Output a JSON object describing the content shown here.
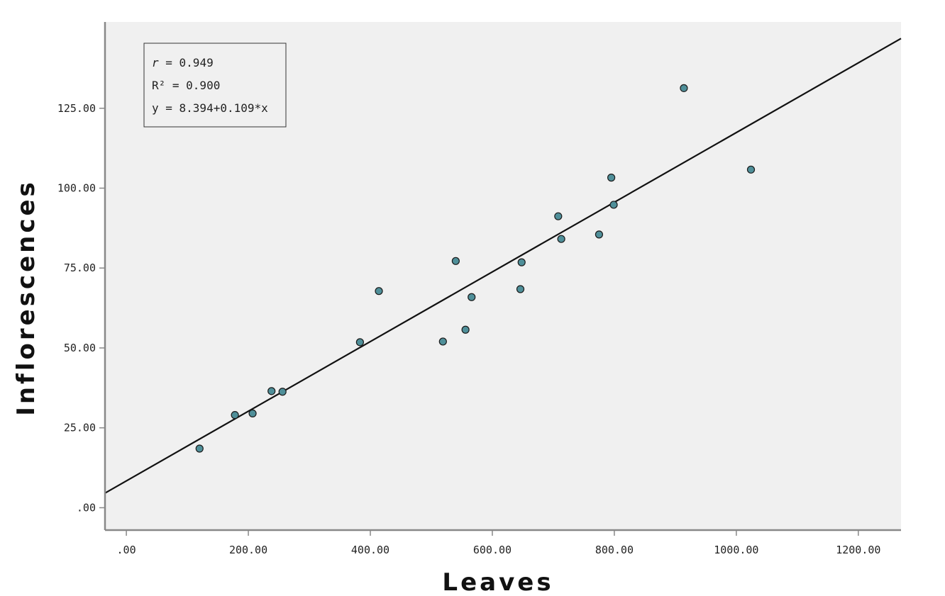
{
  "chart_data": {
    "type": "scatter",
    "title": "",
    "xlabel": "Leaves",
    "ylabel": "Inflorescences",
    "xlim": [
      -35,
      1270
    ],
    "ylim": [
      -7,
      152
    ],
    "x_ticks": [
      0,
      200,
      400,
      600,
      800,
      1000,
      1200
    ],
    "x_tick_labels": [
      ".00",
      "200.00",
      "400.00",
      "600.00",
      "800.00",
      "1000.00",
      "1200.00"
    ],
    "y_ticks": [
      0,
      25,
      50,
      75,
      100,
      125
    ],
    "y_tick_labels": [
      ".00",
      "25.00",
      "50.00",
      "75.00",
      "100.00",
      "125.00"
    ],
    "grid": false,
    "plot_background": "#f0f0f0",
    "point_color": "#4f8f99",
    "point_edge_color": "#1a1a1a",
    "line_color": "#111111",
    "axis_color": "#888888",
    "fit_line": {
      "intercept": 8.394,
      "slope": 0.109
    },
    "stats": {
      "r_label": "r",
      "r_value": " = 0.949",
      "r2": "R² = 0.900",
      "equation": "y = 8.394+0.109*x"
    },
    "points": [
      {
        "x": 120,
        "y": 18.5
      },
      {
        "x": 178,
        "y": 29
      },
      {
        "x": 207,
        "y": 29.5
      },
      {
        "x": 238,
        "y": 36.5
      },
      {
        "x": 256,
        "y": 36.3
      },
      {
        "x": 383,
        "y": 51.8
      },
      {
        "x": 414,
        "y": 67.8
      },
      {
        "x": 519,
        "y": 52
      },
      {
        "x": 540,
        "y": 77.2
      },
      {
        "x": 556,
        "y": 55.7
      },
      {
        "x": 566,
        "y": 65.9
      },
      {
        "x": 646,
        "y": 68.4
      },
      {
        "x": 648,
        "y": 76.8
      },
      {
        "x": 708,
        "y": 91.2
      },
      {
        "x": 713,
        "y": 84.1
      },
      {
        "x": 775,
        "y": 85.5
      },
      {
        "x": 795,
        "y": 103.3
      },
      {
        "x": 799,
        "y": 94.8
      },
      {
        "x": 914,
        "y": 131.3
      },
      {
        "x": 1024,
        "y": 105.8
      }
    ]
  }
}
